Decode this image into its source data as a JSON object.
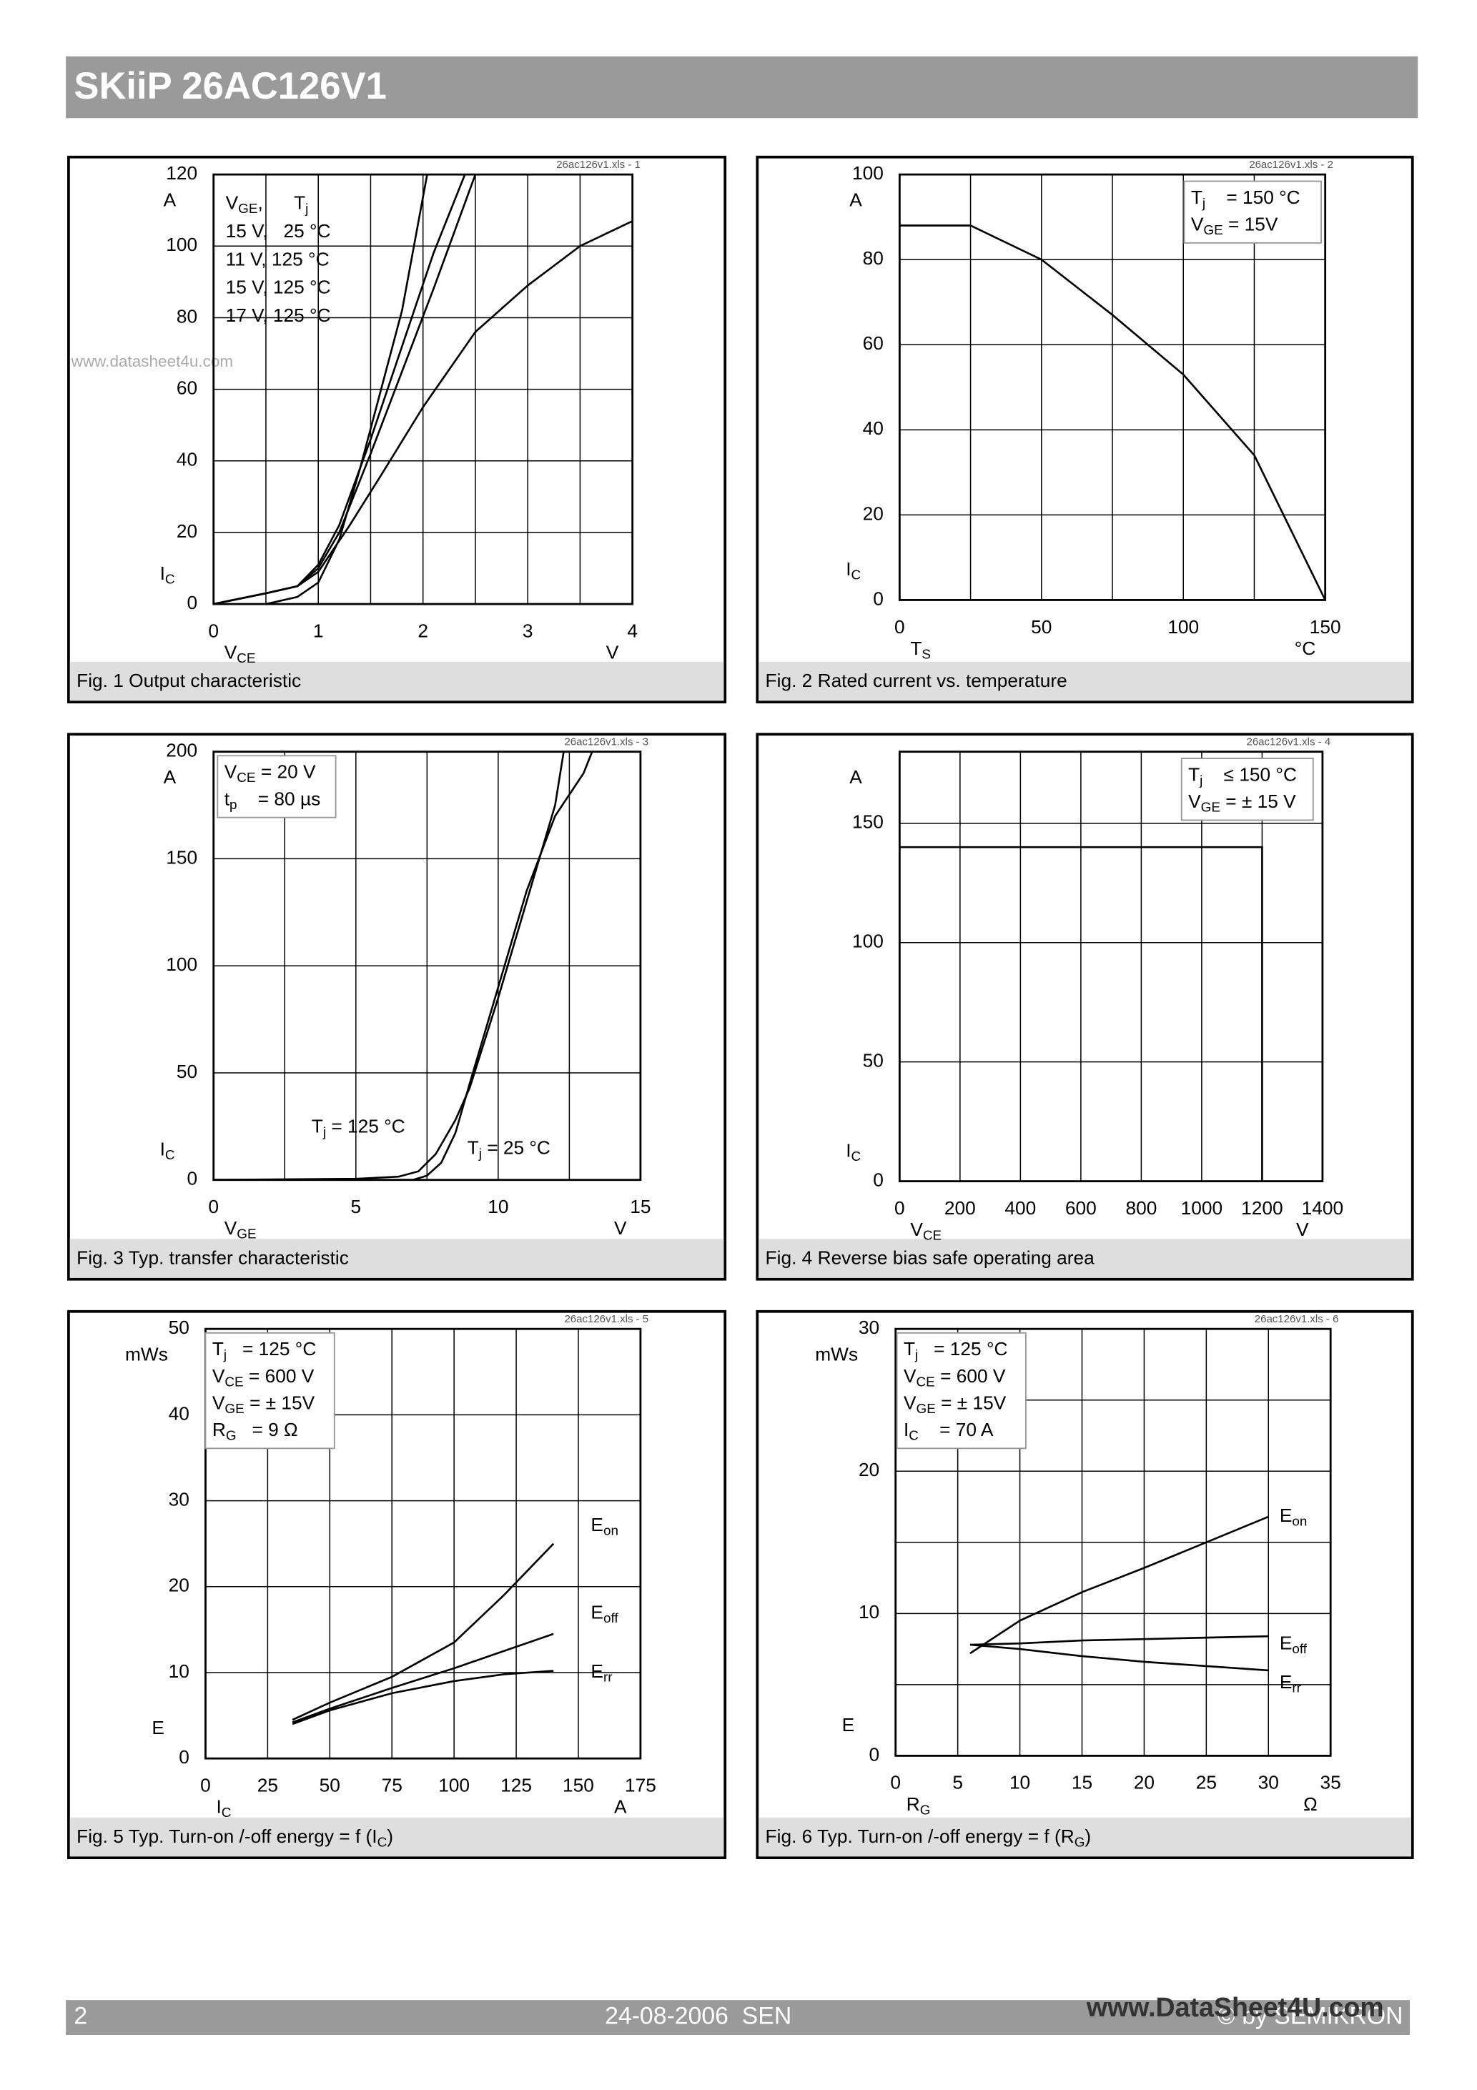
{
  "header": {
    "title": "SKiiP 26AC126V1"
  },
  "footer": {
    "page": "2",
    "date": "24-08-2006  SEN",
    "copyright": "© by SEMIKRON",
    "watermark": "www.DataSheet4U.com"
  },
  "chart_data": [
    {
      "type": "line",
      "title": [
        "Fig. 1 Output characteristic"
      ],
      "note": "26ac126v1.xls - 1",
      "watermark": "www.datasheet4u.com",
      "xlim": [
        0,
        4
      ],
      "xticks": [
        0,
        1,
        2,
        3,
        4
      ],
      "xgrid": [
        0.5,
        1,
        1.5,
        2,
        2.5,
        3,
        3.5
      ],
      "ylim": [
        0,
        120
      ],
      "yticks": [
        0,
        20,
        40,
        60,
        80,
        100,
        120
      ],
      "ygrid": [
        20,
        40,
        60,
        80,
        100
      ],
      "yunit": "A",
      "ylabel": [
        "I",
        "C"
      ],
      "xlabel": [
        "V",
        "CE"
      ],
      "xunit": "V",
      "legend_title": [
        "V",
        "GE",
        ",      T",
        "j"
      ],
      "series": [
        {
          "name": [
            "15 V,   25 °C"
          ],
          "color": "#000",
          "x": [
            0.5,
            0.8,
            1,
            1.2,
            1.4,
            1.6,
            1.8,
            2.04
          ],
          "values": [
            0,
            2,
            6,
            18,
            38,
            60,
            82,
            120
          ]
        },
        {
          "name": [
            "11 V, 125 °C"
          ],
          "color": "#000",
          "x": [
            0,
            0.5,
            0.8,
            1,
            1.3,
            1.6,
            2,
            2.5,
            3,
            3.5,
            4
          ],
          "values": [
            0,
            3,
            5,
            9,
            22,
            36,
            55,
            76,
            89,
            100,
            107
          ]
        },
        {
          "name": [
            "15 V, 125 °C"
          ],
          "color": "#000",
          "x": [
            0,
            0.5,
            0.8,
            1,
            1.2,
            1.5,
            1.8,
            2.1,
            2.5
          ],
          "values": [
            0,
            3,
            5,
            10,
            20,
            42,
            65,
            88,
            120
          ]
        },
        {
          "name": [
            "17 V, 125 °C"
          ],
          "color": "#000",
          "x": [
            0,
            0.5,
            0.8,
            1,
            1.2,
            1.5,
            1.8,
            2.1,
            2.4
          ],
          "values": [
            0,
            3,
            5,
            11,
            22,
            46,
            72,
            98,
            120
          ]
        }
      ]
    },
    {
      "type": "line",
      "title": [
        "Fig. 2 Rated current vs. temperature"
      ],
      "note": "26ac126v1.xls - 2",
      "xlim": [
        0,
        150
      ],
      "xticks": [
        0,
        50,
        100,
        150
      ],
      "xgrid": [
        25,
        50,
        75,
        100,
        125
      ],
      "ylim": [
        0,
        100
      ],
      "yticks": [
        0,
        20,
        40,
        60,
        80,
        100
      ],
      "ygrid": [
        20,
        40,
        60,
        80
      ],
      "yunit": "A",
      "ylabel": [
        "I",
        "C"
      ],
      "xlabel": [
        "T",
        "S"
      ],
      "xunit": "°C",
      "conditions": [
        [
          "T",
          "j",
          "    = 150 °C"
        ],
        [
          "V",
          "GE",
          " = 15V"
        ]
      ],
      "series": [
        {
          "color": "#000",
          "x": [
            0,
            25,
            50,
            75,
            100,
            125,
            150
          ],
          "values": [
            88,
            88,
            80,
            67,
            53,
            34,
            0
          ]
        }
      ]
    },
    {
      "type": "line",
      "title": [
        "Fig. 3 Typ. transfer characteristic"
      ],
      "note": "26ac126v1.xls - 3",
      "xlim": [
        0,
        15
      ],
      "xticks": [
        0,
        5,
        10,
        15
      ],
      "xgrid": [
        2.5,
        5,
        7.5,
        10,
        12.5
      ],
      "ylim": [
        0,
        200
      ],
      "yticks": [
        0,
        50,
        100,
        150,
        200
      ],
      "ygrid": [
        50,
        100,
        150
      ],
      "yunit": "A",
      "ylabel": [
        "I",
        "C"
      ],
      "xlabel": [
        "V",
        "GE"
      ],
      "xunit": "V",
      "conditions": [
        [
          "V",
          "CE",
          " = 20 V"
        ],
        [
          "t",
          "p",
          "    = 80 µs"
        ]
      ],
      "series": [
        {
          "name": [
            "T",
            "j",
            " = 125 °C"
          ],
          "color": "#000",
          "x": [
            0,
            5,
            6.5,
            7.2,
            7.8,
            8.5,
            9,
            10,
            11,
            12,
            12.3
          ],
          "values": [
            0,
            0.5,
            1.5,
            4,
            12,
            28,
            43,
            85,
            130,
            175,
            200
          ]
        },
        {
          "name": [
            "T",
            "j",
            " = 25 °C"
          ],
          "color": "#000",
          "x": [
            0,
            7,
            7.5,
            8,
            8.5,
            9,
            10,
            11,
            12,
            13,
            13.3
          ],
          "values": [
            0,
            0,
            2,
            8,
            22,
            45,
            90,
            135,
            170,
            190,
            200
          ]
        }
      ]
    },
    {
      "type": "line",
      "title": [
        "Fig. 4 Reverse bias safe operating area"
      ],
      "note": "26ac126v1.xls - 4",
      "xlim": [
        0,
        1400
      ],
      "xticks": [
        0,
        200,
        400,
        600,
        800,
        1000,
        1200,
        1400
      ],
      "xgrid": [
        200,
        400,
        600,
        800,
        1000,
        1200
      ],
      "ylim": [
        0,
        180
      ],
      "yticks": [
        0,
        50,
        100,
        150
      ],
      "ygrid": [
        50,
        100,
        150
      ],
      "yunit": "A",
      "ylabel": [
        "I",
        "C"
      ],
      "xlabel": [
        "V",
        "CE"
      ],
      "xunit": "V",
      "conditions": [
        [
          "T",
          "j",
          "    ≤ 150 °C"
        ],
        [
          "V",
          "GE",
          " = ± 15 V"
        ]
      ],
      "series": [
        {
          "color": "#000",
          "x": [
            0,
            1200,
            1200
          ],
          "values": [
            140,
            140,
            0
          ]
        }
      ]
    },
    {
      "type": "line",
      "title": [
        "Fig. 5 Typ. Turn-on /-off energy = f (I",
        "C",
        ")"
      ],
      "note": "26ac126v1.xls - 5",
      "xlim": [
        0,
        175
      ],
      "xticks": [
        0,
        25,
        50,
        75,
        100,
        125,
        150,
        175
      ],
      "xgrid": [
        25,
        50,
        75,
        100,
        125,
        150
      ],
      "ylim": [
        0,
        50
      ],
      "yticks": [
        0,
        10,
        20,
        30,
        40,
        50
      ],
      "ygrid": [
        10,
        20,
        30,
        40
      ],
      "yunit": "mWs",
      "ylabel": [
        "E"
      ],
      "xlabel": [
        "I",
        "C"
      ],
      "xunit": "A",
      "conditions": [
        [
          "T",
          "j",
          "   = 125 °C"
        ],
        [
          "V",
          "CE",
          " = 600 V"
        ],
        [
          "V",
          "GE",
          " = ± 15V"
        ],
        [
          "R",
          "G",
          "   = 9 Ω"
        ]
      ],
      "series": [
        {
          "name": [
            "E",
            "on"
          ],
          "color": "#000",
          "x": [
            35,
            50,
            75,
            100,
            120,
            140
          ],
          "values": [
            4.5,
            6.5,
            9.5,
            13.5,
            19,
            25
          ]
        },
        {
          "name": [
            "E",
            "off"
          ],
          "color": "#000",
          "x": [
            35,
            50,
            75,
            100,
            120,
            140
          ],
          "values": [
            4.2,
            5.8,
            8.2,
            10.5,
            12.5,
            14.5
          ]
        },
        {
          "name": [
            "E",
            "rr"
          ],
          "color": "#000",
          "x": [
            35,
            50,
            75,
            100,
            120,
            140
          ],
          "values": [
            4,
            5.6,
            7.6,
            9,
            9.8,
            10.2
          ]
        }
      ]
    },
    {
      "type": "line",
      "title": [
        "Fig. 6 Typ. Turn-on /-off energy = f (R",
        "G",
        ")"
      ],
      "note": "26ac126v1.xls - 6",
      "xlim": [
        0,
        35
      ],
      "xticks": [
        0,
        5,
        10,
        15,
        20,
        25,
        30,
        35
      ],
      "xgrid": [
        5,
        10,
        15,
        20,
        25,
        30
      ],
      "ylim": [
        0,
        30
      ],
      "yticks": [
        0,
        10,
        20,
        30
      ],
      "ygrid": [
        5,
        10,
        15,
        20,
        25
      ],
      "yunit": "mWs",
      "ylabel": [
        "E"
      ],
      "xlabel": [
        "R",
        "G"
      ],
      "xunit": "Ω",
      "conditions": [
        [
          "T",
          "j",
          "   = 125 °C"
        ],
        [
          "V",
          "CE",
          " = 600 V"
        ],
        [
          "V",
          "GE",
          " = ± 15V"
        ],
        [
          "I",
          "C",
          "    = 70 A"
        ]
      ],
      "series": [
        {
          "name": [
            "E",
            "on"
          ],
          "color": "#000",
          "x": [
            6,
            10,
            15,
            20,
            25,
            30
          ],
          "values": [
            7.2,
            9.5,
            11.5,
            13.2,
            15,
            16.8
          ]
        },
        {
          "name": [
            "E",
            "off"
          ],
          "color": "#000",
          "x": [
            6,
            10,
            15,
            20,
            25,
            30
          ],
          "values": [
            7.8,
            7.9,
            8.1,
            8.2,
            8.3,
            8.4
          ]
        },
        {
          "name": [
            "E",
            "rr"
          ],
          "color": "#000",
          "x": [
            6,
            10,
            15,
            20,
            25,
            30
          ],
          "values": [
            7.8,
            7.5,
            7,
            6.6,
            6.3,
            6
          ]
        }
      ]
    }
  ]
}
